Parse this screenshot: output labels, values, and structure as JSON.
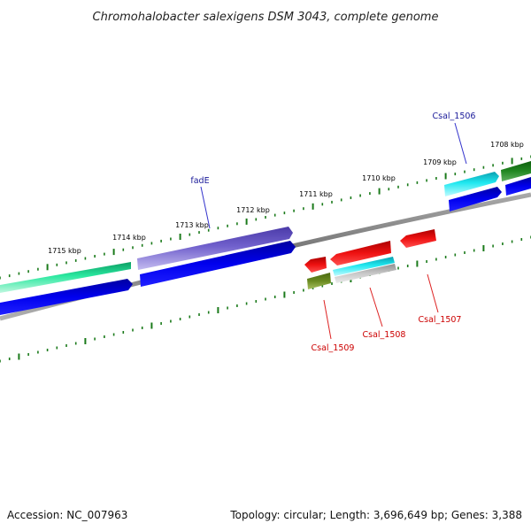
{
  "title": "Chromohalobacter salexigens DSM 3043, complete genome",
  "footer": {
    "accession": "Accession: NC_007963",
    "summary": "Topology: circular; Length: 3,696,649 bp; Genes: 3,388"
  },
  "colors": {
    "tick": "#1a7a1a",
    "backbone": "#808080",
    "label_blue": "#1a1a99",
    "label_red": "#cc0000",
    "cds_forward": "#0000ee",
    "cds_reverse": "#0000ee",
    "gene_teal": "#2be8a0",
    "gene_purple": "#7060cc",
    "gene_cyan": "#20e8f0",
    "gene_red": "#ee1111",
    "gene_olive": "#6a8a20",
    "gene_darkgreen": "#228822",
    "gene_gray": "#c8c8c8"
  },
  "ticks": [
    "1708 kbp",
    "1709 kbp",
    "1710 kbp",
    "1711 kbp",
    "1712 kbp",
    "1713 kbp",
    "1714 kbp",
    "1715 kbp"
  ],
  "gene_labels": {
    "csal_1506": "Csal_1506",
    "fade": "fadE",
    "csal_1509": "Csal_1509",
    "csal_1508": "Csal_1508",
    "csal_1507": "Csal_1507"
  }
}
